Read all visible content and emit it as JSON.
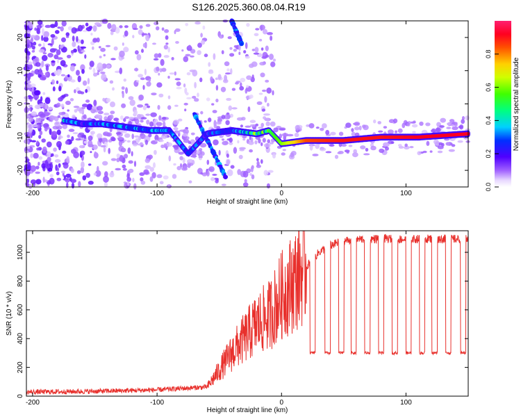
{
  "title": "S126.2025.360.08.04.R19",
  "colors": {
    "snr_line": "#e8302c",
    "axis": "#000000"
  },
  "chart_data": [
    {
      "type": "heatmap",
      "xlabel": "Height of straight line (km)",
      "ylabel": "Frequency (Hz)",
      "xlim": [
        -205,
        150
      ],
      "ylim": [
        -25,
        25
      ],
      "xticks": [
        -200,
        -100,
        0,
        100
      ],
      "yticks": [
        -20,
        -10,
        0,
        10,
        20
      ],
      "colorbar": {
        "label": "Normalized spectral amplitude",
        "range": [
          0,
          1
        ],
        "ticks": [
          "0.0",
          "0.2",
          "0.4",
          "0.6",
          "0.8"
        ],
        "colormap": "hsv-rainbow (white → purple → blue → cyan → green → yellow → red)"
      },
      "ridge": [
        {
          "x": -175,
          "freq": -5,
          "amp": 0.35
        },
        {
          "x": -160,
          "freq": -6,
          "amp": 0.28
        },
        {
          "x": -145,
          "freq": -6,
          "amp": 0.32
        },
        {
          "x": -125,
          "freq": -7,
          "amp": 0.35
        },
        {
          "x": -105,
          "freq": -8,
          "amp": 0.32
        },
        {
          "x": -90,
          "freq": -8,
          "amp": 0.3
        },
        {
          "x": -75,
          "freq": -15,
          "amp": 0.3
        },
        {
          "x": -60,
          "freq": -9,
          "amp": 0.25
        },
        {
          "x": -40,
          "freq": -8,
          "amp": 0.3
        },
        {
          "x": -20,
          "freq": -9,
          "amp": 0.55
        },
        {
          "x": -10,
          "freq": -8,
          "amp": 0.5
        },
        {
          "x": 0,
          "freq": -12,
          "amp": 0.6
        },
        {
          "x": 20,
          "freq": -11,
          "amp": 0.85
        },
        {
          "x": 50,
          "freq": -11,
          "amp": 0.9
        },
        {
          "x": 80,
          "freq": -10,
          "amp": 0.9
        },
        {
          "x": 110,
          "freq": -10,
          "amp": 0.92
        },
        {
          "x": 150,
          "freq": -9,
          "amp": 0.92
        }
      ],
      "branches": [
        {
          "x": [
            -70,
            -45
          ],
          "freq": [
            -3,
            -22
          ]
        },
        {
          "x": [
            -40,
            -32
          ],
          "freq": [
            25,
            18
          ]
        }
      ]
    },
    {
      "type": "line",
      "xlabel": "Height of straight line (km)",
      "ylabel": "SNR (10 * v/v)",
      "xlim": [
        -205,
        150
      ],
      "ylim": [
        0,
        1150
      ],
      "xticks": [
        -200,
        -100,
        0,
        100
      ],
      "yticks": [
        0,
        200,
        400,
        600,
        800,
        1000
      ],
      "series": [
        {
          "name": "SNR",
          "x": [
            -205,
            -150,
            -100,
            -60,
            -50,
            -40,
            -30,
            -20,
            -10,
            0,
            10,
            20,
            30,
            40,
            50,
            60,
            80,
            100,
            120,
            150
          ],
          "values": [
            25,
            30,
            40,
            60,
            180,
            300,
            400,
            500,
            560,
            700,
            800,
            900,
            1000,
            1050,
            1080,
            1090,
            1095,
            1090,
            1095,
            1090
          ],
          "dropouts": {
            "low_value": 300,
            "x": [
              25,
              37,
              48,
              58,
              69,
              80,
              91,
              102,
              113,
              123,
              134,
              146
            ]
          }
        }
      ]
    }
  ]
}
